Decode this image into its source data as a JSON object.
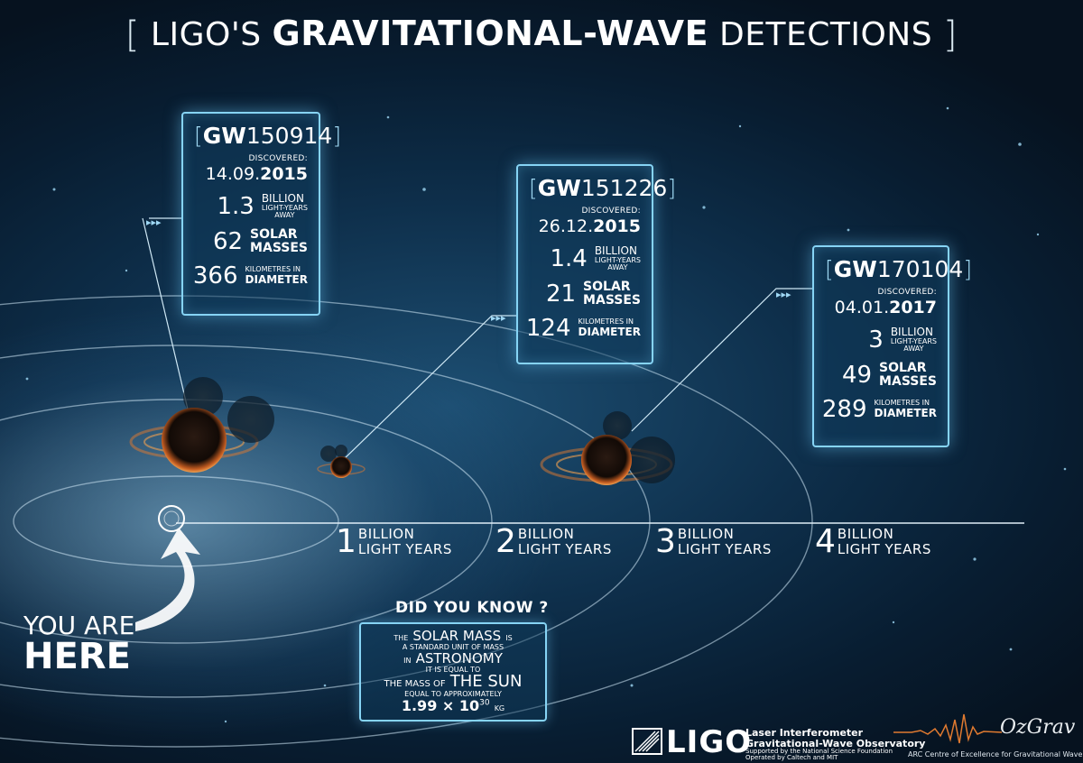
{
  "title": {
    "open_bracket": "[",
    "prefix": "LIGO'S",
    "bold": "GRAVITATIONAL-WAVE",
    "suffix": "DETECTIONS",
    "close_bracket": "]"
  },
  "detections": [
    {
      "prefix": "GW",
      "number": "150914",
      "discovered_label": "DISCOVERED:",
      "date_plain": "14.09.",
      "date_year": "2015",
      "distance": "1.3",
      "distance_l1": "BILLION",
      "distance_l2": "LIGHT-YEARS",
      "distance_l3": "AWAY",
      "mass": "62",
      "mass_l1": "SOLAR",
      "mass_l2": "MASSES",
      "diameter": "366",
      "diameter_l1": "KILOMETRES IN",
      "diameter_l2": "DIAMETER"
    },
    {
      "prefix": "GW",
      "number": "151226",
      "discovered_label": "DISCOVERED:",
      "date_plain": "26.12.",
      "date_year": "2015",
      "distance": "1.4",
      "distance_l1": "BILLION",
      "distance_l2": "LIGHT-YEARS",
      "distance_l3": "AWAY",
      "mass": "21",
      "mass_l1": "SOLAR",
      "mass_l2": "MASSES",
      "diameter": "124",
      "diameter_l1": "KILOMETRES IN",
      "diameter_l2": "DIAMETER"
    },
    {
      "prefix": "GW",
      "number": "170104",
      "discovered_label": "DISCOVERED:",
      "date_plain": "04.01.",
      "date_year": "2017",
      "distance": "3",
      "distance_l1": "BILLION",
      "distance_l2": "LIGHT-YEARS",
      "distance_l3": "AWAY",
      "mass": "49",
      "mass_l1": "SOLAR",
      "mass_l2": "MASSES",
      "diameter": "289",
      "diameter_l1": "KILOMETRES IN",
      "diameter_l2": "DIAMETER"
    }
  ],
  "distance_markers": [
    {
      "number": "1",
      "l1": "BILLION",
      "l2": "LIGHT YEARS"
    },
    {
      "number": "2",
      "l1": "BILLION",
      "l2": "LIGHT YEARS"
    },
    {
      "number": "3",
      "l1": "BILLION",
      "l2": "LIGHT YEARS"
    },
    {
      "number": "4",
      "l1": "BILLION",
      "l2": "LIGHT YEARS"
    }
  ],
  "you_are_here": {
    "line1": "YOU ARE",
    "line2": "HERE"
  },
  "did_you_know": {
    "title": "DID YOU KNOW ?",
    "the": "THE",
    "solar_mass": "SOLAR MASS",
    "is": "IS",
    "line2": "A STANDARD UNIT OF MASS",
    "in": "IN",
    "astronomy": "ASTRONOMY",
    "line4": "IT IS EQUAL TO",
    "the_mass_of": "THE MASS OF",
    "the_sun": "THE SUN",
    "line6": "EQUAL TO APPROXIMATELY",
    "value": "1.99 × 10",
    "exponent": "30",
    "unit": "KG"
  },
  "footer": {
    "ligo": "LIGO",
    "ligo_line1": "Laser Interferometer",
    "ligo_line2": "Gravitational-Wave Observatory",
    "ligo_line3": "Supported by the National Science Foundation",
    "ligo_line4": "Operated by Caltech and MIT",
    "ozgrav": "OzGrav",
    "ozgrav_tag": "ARC Centre of Excellence for Gravitational Wave Discovery"
  },
  "colors": {
    "accent": "#86d4f5",
    "background": "#0b2a45",
    "glow": "#e07a30"
  }
}
